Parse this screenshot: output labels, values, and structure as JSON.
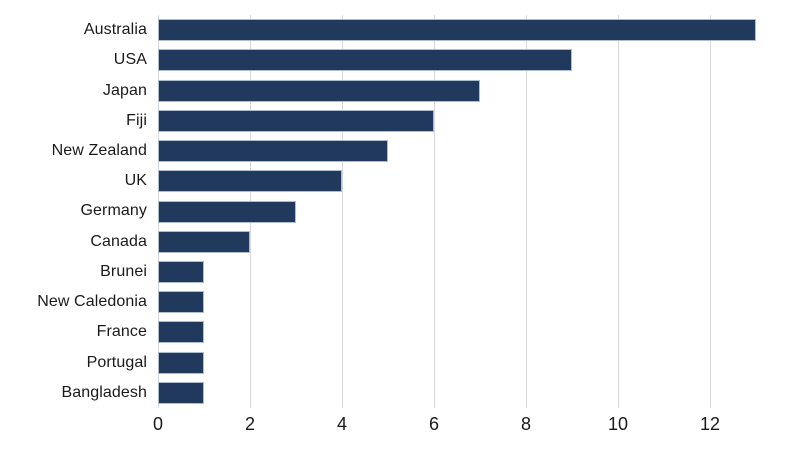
{
  "chart_data": {
    "type": "bar",
    "orientation": "horizontal",
    "title": "",
    "xlabel": "",
    "ylabel": "",
    "categories": [
      "Australia",
      "USA",
      "Japan",
      "Fiji",
      "New Zealand",
      "UK",
      "Germany",
      "Canada",
      "Brunei",
      "New Caledonia",
      "France",
      "Portugal",
      "Bangladesh"
    ],
    "values": [
      13,
      9,
      7,
      6,
      5,
      4,
      3,
      2,
      1,
      1,
      1,
      1,
      1
    ],
    "xticks": [
      0,
      2,
      4,
      6,
      8,
      10,
      12
    ],
    "xlim": [
      0,
      13.5
    ],
    "grid": "vertical-only",
    "legend": "none",
    "colors": {
      "bar_fill": "#22395E",
      "bar_edge": "#AFBDD0",
      "gridline": "#D8D8D8",
      "text": "#1A1A1A",
      "background": "#FFFFFF"
    }
  }
}
